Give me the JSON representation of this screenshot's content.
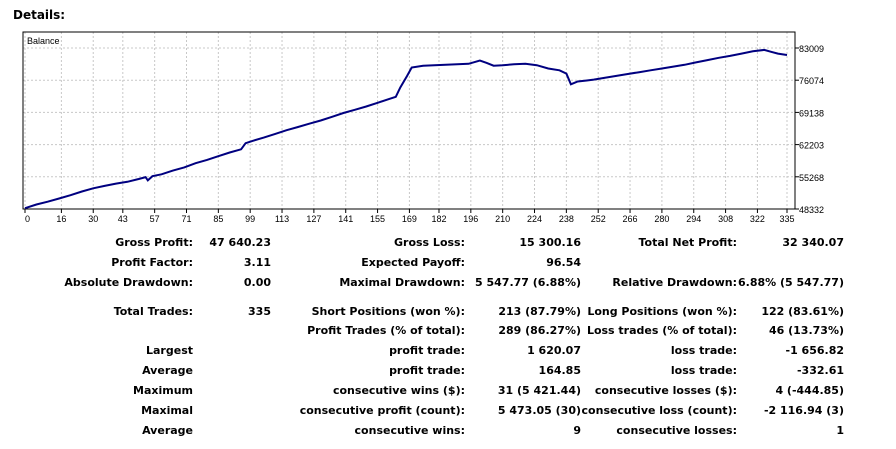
{
  "header": {
    "title": "Details:"
  },
  "chart_data": {
    "type": "line",
    "title": "Balance",
    "x_ticks": [
      "0",
      "16",
      "30",
      "43",
      "57",
      "71",
      "85",
      "99",
      "113",
      "127",
      "141",
      "155",
      "169",
      "182",
      "196",
      "210",
      "224",
      "238",
      "252",
      "266",
      "280",
      "294",
      "308",
      "322",
      "335"
    ],
    "y_ticks": [
      "83009",
      "76074",
      "69138",
      "62203",
      "55268",
      "48332"
    ],
    "x_range": [
      0,
      335
    ],
    "y_range": [
      48332,
      83009
    ],
    "grid": true,
    "series": [
      {
        "color": "#000080",
        "points": [
          [
            0,
            48500
          ],
          [
            5,
            49300
          ],
          [
            10,
            49900
          ],
          [
            15,
            50600
          ],
          [
            20,
            51300
          ],
          [
            25,
            52100
          ],
          [
            30,
            52800
          ],
          [
            35,
            53300
          ],
          [
            40,
            53800
          ],
          [
            45,
            54200
          ],
          [
            50,
            54800
          ],
          [
            53,
            55200
          ],
          [
            54,
            54500
          ],
          [
            56,
            55400
          ],
          [
            60,
            55800
          ],
          [
            65,
            56600
          ],
          [
            70,
            57300
          ],
          [
            75,
            58200
          ],
          [
            80,
            58900
          ],
          [
            85,
            59700
          ],
          [
            90,
            60500
          ],
          [
            95,
            61200
          ],
          [
            97,
            62500
          ],
          [
            100,
            63000
          ],
          [
            105,
            63700
          ],
          [
            110,
            64500
          ],
          [
            115,
            65300
          ],
          [
            120,
            66000
          ],
          [
            125,
            66700
          ],
          [
            130,
            67400
          ],
          [
            135,
            68200
          ],
          [
            140,
            69000
          ],
          [
            145,
            69700
          ],
          [
            150,
            70400
          ],
          [
            155,
            71200
          ],
          [
            160,
            72000
          ],
          [
            163,
            72500
          ],
          [
            165,
            74500
          ],
          [
            168,
            77000
          ],
          [
            170,
            78800
          ],
          [
            175,
            79200
          ],
          [
            180,
            79300
          ],
          [
            185,
            79400
          ],
          [
            190,
            79500
          ],
          [
            195,
            79600
          ],
          [
            200,
            80300
          ],
          [
            203,
            79800
          ],
          [
            206,
            79200
          ],
          [
            210,
            79300
          ],
          [
            215,
            79500
          ],
          [
            220,
            79600
          ],
          [
            225,
            79300
          ],
          [
            230,
            78600
          ],
          [
            235,
            78200
          ],
          [
            238,
            77500
          ],
          [
            240,
            75200
          ],
          [
            243,
            75800
          ],
          [
            247,
            76000
          ],
          [
            250,
            76200
          ],
          [
            255,
            76600
          ],
          [
            260,
            77000
          ],
          [
            265,
            77400
          ],
          [
            270,
            77800
          ],
          [
            275,
            78200
          ],
          [
            280,
            78600
          ],
          [
            285,
            79000
          ],
          [
            290,
            79400
          ],
          [
            295,
            79900
          ],
          [
            300,
            80400
          ],
          [
            305,
            80900
          ],
          [
            310,
            81300
          ],
          [
            315,
            81800
          ],
          [
            320,
            82300
          ],
          [
            325,
            82600
          ],
          [
            328,
            82200
          ],
          [
            331,
            81800
          ],
          [
            335,
            81500
          ]
        ]
      }
    ]
  },
  "stats": {
    "gross_profit": {
      "label": "Gross Profit:",
      "value": "47 640.23"
    },
    "gross_loss": {
      "label": "Gross Loss:",
      "value": "15 300.16"
    },
    "total_net_profit": {
      "label": "Total Net Profit:",
      "value": "32 340.07"
    },
    "profit_factor": {
      "label": "Profit Factor:",
      "value": "3.11"
    },
    "expected_payoff": {
      "label": "Expected Payoff:",
      "value": "96.54"
    },
    "absolute_drawdown": {
      "label": "Absolute Drawdown:",
      "value": "0.00"
    },
    "maximal_drawdown": {
      "label": "Maximal Drawdown:",
      "value": "5 547.77 (6.88%)"
    },
    "relative_drawdown": {
      "label": "Relative Drawdown:",
      "value": "6.88% (5 547.77)"
    },
    "total_trades": {
      "label": "Total Trades:",
      "value": "335"
    },
    "short_positions": {
      "label": "Short Positions (won %):",
      "value": "213 (87.79%)"
    },
    "long_positions": {
      "label": "Long Positions (won %):",
      "value": "122 (83.61%)"
    },
    "profit_trades": {
      "label": "Profit Trades (% of total):",
      "value": "289 (86.27%)"
    },
    "loss_trades": {
      "label": "Loss trades (% of total):",
      "value": "46 (13.73%)"
    },
    "largest": {
      "label": "Largest",
      "profit_label": "profit trade:",
      "profit_value": "1 620.07",
      "loss_label": "loss trade:",
      "loss_value": "-1 656.82"
    },
    "average": {
      "label": "Average",
      "profit_label": "profit trade:",
      "profit_value": "164.85",
      "loss_label": "loss trade:",
      "loss_value": "-332.61"
    },
    "maximum": {
      "label": "Maximum",
      "profit_label": "consecutive wins ($):",
      "profit_value": "31 (5 421.44)",
      "loss_label": "consecutive losses ($):",
      "loss_value": "4 (-444.85)"
    },
    "maximal": {
      "label": "Maximal",
      "profit_label": "consecutive profit (count):",
      "profit_value": "5 473.05 (30)",
      "loss_label": "consecutive loss (count):",
      "loss_value": "-2 116.94 (3)"
    },
    "average2": {
      "label": "Average",
      "profit_label": "consecutive wins:",
      "profit_value": "9",
      "loss_label": "consecutive losses:",
      "loss_value": "1"
    }
  }
}
